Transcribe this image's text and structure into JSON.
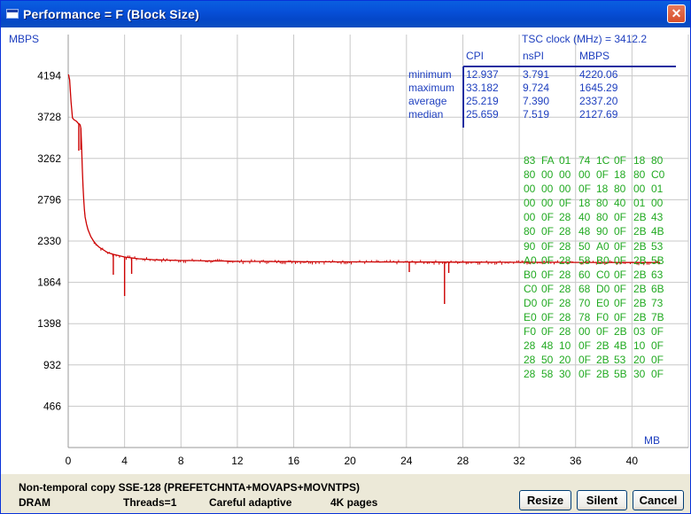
{
  "window": {
    "title": "Performance = F (Block Size)",
    "close_label": "✕",
    "icon": "app-window-icon"
  },
  "stats": {
    "tsc_label": "TSC clock (MHz)  =",
    "tsc_value": "3412.2",
    "columns": [
      "CPI",
      "nsPI",
      "MBPS"
    ],
    "rows": [
      {
        "label": "minimum",
        "cpi": "12.937",
        "nspi": "3.791",
        "mbps": "4220.06"
      },
      {
        "label": "maximum",
        "cpi": "33.182",
        "nspi": "9.724",
        "mbps": "1645.29"
      },
      {
        "label": "average",
        "cpi": "25.219",
        "nspi": "7.390",
        "mbps": "2337.20"
      },
      {
        "label": "median",
        "cpi": "25.659",
        "nspi": "7.519",
        "mbps": "2127.69"
      }
    ]
  },
  "hex_dump": [
    [
      "83",
      "FA",
      "01",
      "74",
      "1C",
      "0F",
      "18",
      "80"
    ],
    [
      "80",
      "00",
      "00",
      "00",
      "0F",
      "18",
      "80",
      "C0"
    ],
    [
      "00",
      "00",
      "00",
      "0F",
      "18",
      "80",
      "00",
      "01"
    ],
    [
      "00",
      "00",
      "0F",
      "18",
      "80",
      "40",
      "01",
      "00"
    ],
    [
      "00",
      "0F",
      "28",
      "40",
      "80",
      "0F",
      "2B",
      "43"
    ],
    [
      "80",
      "0F",
      "28",
      "48",
      "90",
      "0F",
      "2B",
      "4B"
    ],
    [
      "90",
      "0F",
      "28",
      "50",
      "A0",
      "0F",
      "2B",
      "53"
    ],
    [
      "A0",
      "0F",
      "28",
      "58",
      "B0",
      "0F",
      "2B",
      "5B"
    ],
    [
      "B0",
      "0F",
      "28",
      "60",
      "C0",
      "0F",
      "2B",
      "63"
    ],
    [
      "C0",
      "0F",
      "28",
      "68",
      "D0",
      "0F",
      "2B",
      "6B"
    ],
    [
      "D0",
      "0F",
      "28",
      "70",
      "E0",
      "0F",
      "2B",
      "73"
    ],
    [
      "E0",
      "0F",
      "28",
      "78",
      "F0",
      "0F",
      "2B",
      "7B"
    ],
    [
      "F0",
      "0F",
      "28",
      "00",
      "0F",
      "2B",
      "03",
      "0F"
    ],
    [
      "28",
      "48",
      "10",
      "0F",
      "2B",
      "4B",
      "10",
      "0F"
    ],
    [
      "28",
      "50",
      "20",
      "0F",
      "2B",
      "53",
      "20",
      "0F"
    ],
    [
      "28",
      "58",
      "30",
      "0F",
      "2B",
      "5B",
      "30",
      "0F"
    ]
  ],
  "status": {
    "description": "Non-temporal copy SSE-128 (PREFETCHNTA+MOVAPS+MOVNTPS)",
    "memory": "DRAM",
    "threads": "Threads=1",
    "mode": "Careful adaptive",
    "pages": "4K pages"
  },
  "buttons": {
    "resize": "Resize",
    "silent": "Silent",
    "cancel": "Cancel"
  },
  "chart_data": {
    "type": "line",
    "title": "",
    "xlabel": "MB",
    "ylabel": "MBPS",
    "xlim": [
      0,
      44
    ],
    "ylim": [
      0,
      4660
    ],
    "xticks": [
      0,
      4,
      8,
      12,
      16,
      20,
      24,
      28,
      32,
      36,
      40
    ],
    "yticks": [
      466,
      932,
      1398,
      1864,
      2330,
      2796,
      3262,
      3728,
      4194
    ],
    "grid": true,
    "series": [
      {
        "color": "#cc0000",
        "x": [
          0.02,
          0.1,
          0.2,
          0.3,
          0.4,
          0.5,
          0.6,
          0.7,
          0.8,
          0.85,
          0.9,
          0.95,
          1.0,
          1.05,
          1.1,
          1.15,
          1.2,
          1.3,
          1.4,
          1.5,
          1.6,
          1.8,
          2.0,
          2.2,
          2.5,
          2.8,
          3.2,
          3.6,
          4.0,
          4.5,
          5.0,
          5.5,
          6.0,
          7.0,
          8.0,
          9.0,
          10.0,
          11.0,
          12.0,
          13.0,
          14.0,
          15.0,
          16.0,
          17.0,
          18.0,
          19.0,
          20.0,
          21.0,
          22.0,
          23.0,
          24.0,
          25.0,
          26.0,
          27.0,
          28.0,
          29.0,
          30.0,
          31.0,
          32.0,
          33.0,
          34.0,
          35.0,
          36.0,
          37.0,
          38.0,
          39.0,
          40.0,
          41.0,
          42.0
        ],
        "y": [
          4210,
          4150,
          3900,
          3720,
          3700,
          3690,
          3680,
          3660,
          3650,
          3640,
          3600,
          3400,
          3150,
          2950,
          2800,
          2680,
          2600,
          2520,
          2460,
          2420,
          2380,
          2330,
          2290,
          2260,
          2230,
          2200,
          2180,
          2165,
          2150,
          2140,
          2130,
          2125,
          2120,
          2115,
          2110,
          2110,
          2105,
          2105,
          2100,
          2100,
          2100,
          2098,
          2098,
          2096,
          2096,
          2095,
          2095,
          2095,
          2094,
          2094,
          2094,
          2093,
          2093,
          2092,
          2092,
          2092,
          2091,
          2091,
          2090,
          2090,
          2090,
          2090,
          2089,
          2089,
          2089,
          2088,
          2088,
          2088,
          2088
        ]
      }
    ],
    "dips": [
      {
        "x": 0.75,
        "y": 3350
      },
      {
        "x": 0.9,
        "y": 3360
      },
      {
        "x": 3.2,
        "y": 1950
      },
      {
        "x": 4.0,
        "y": 1710
      },
      {
        "x": 4.5,
        "y": 1960
      },
      {
        "x": 24.2,
        "y": 1980
      },
      {
        "x": 26.7,
        "y": 1620
      },
      {
        "x": 27.0,
        "y": 1970
      }
    ]
  }
}
